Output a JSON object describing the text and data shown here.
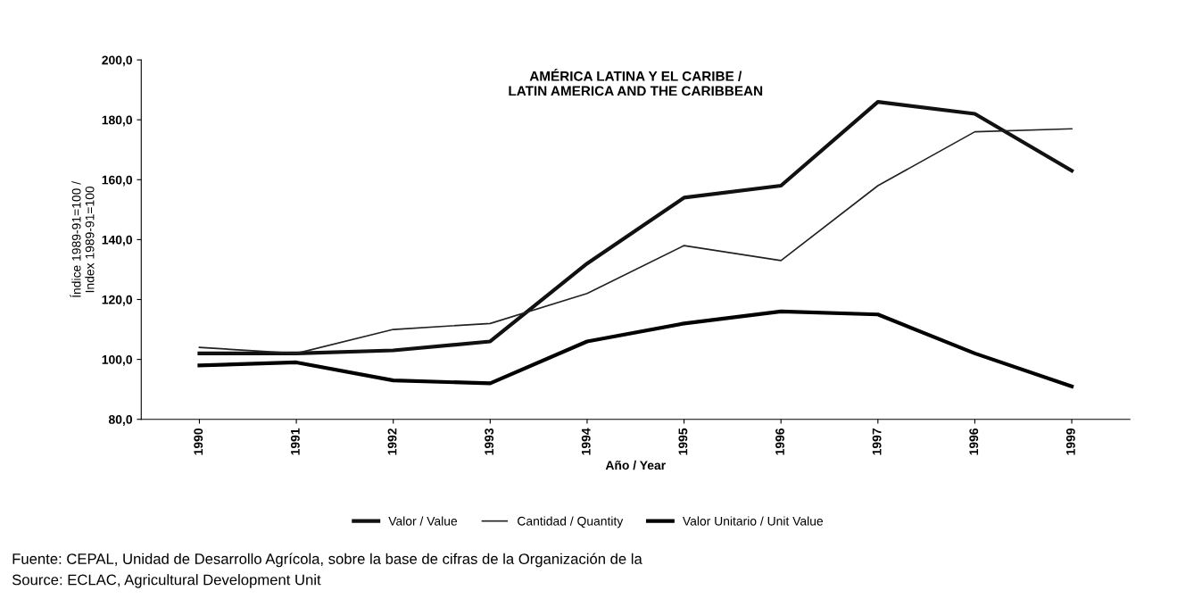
{
  "chart_data": {
    "type": "line",
    "title": "AMÉRICA LATINA Y EL CARIBE /\nLATIN AMERICA AND THE CARIBBEAN",
    "xlabel": "Año / Year",
    "ylabel": "Índice 1989-91=100 /\nIndex 1989-91=100",
    "categories": [
      "1990",
      "1991",
      "1992",
      "1993",
      "1994",
      "1995",
      "1996",
      "1997",
      "1996",
      "1999"
    ],
    "series": [
      {
        "name": "Valor / Value",
        "color": "#111111",
        "values": [
          102,
          102,
          103,
          106,
          132,
          154,
          158,
          186,
          182,
          163
        ]
      },
      {
        "name": "Cantidad / Quantity",
        "color": "#222222",
        "values": [
          104,
          102,
          110,
          112,
          122,
          138,
          133,
          158,
          176,
          177
        ]
      },
      {
        "name": "Valor Unitario / Unit Value",
        "color": "#000000",
        "values": [
          98,
          99,
          93,
          92,
          106,
          112,
          116,
          115,
          102,
          91
        ]
      }
    ],
    "ylim": [
      80,
      200
    ],
    "yticks": [
      {
        "value": 80,
        "label": "80,0"
      },
      {
        "value": 100,
        "label": "100,0"
      },
      {
        "value": 120,
        "label": "120,0"
      },
      {
        "value": 140,
        "label": "140,0"
      },
      {
        "value": 160,
        "label": "160,0"
      },
      {
        "value": 180,
        "label": "180,0"
      },
      {
        "value": 200,
        "label": "200,0"
      }
    ],
    "legend": "bottom",
    "grid": false,
    "marker": "none",
    "line_style": "solid",
    "annotations": [
      "Fuente: CEPAL, Unidad de Desarrollo Agrícola, sobre la base de cifras de la Organización de la",
      "Source: ECLAC, Agricultural Development Unit"
    ]
  }
}
